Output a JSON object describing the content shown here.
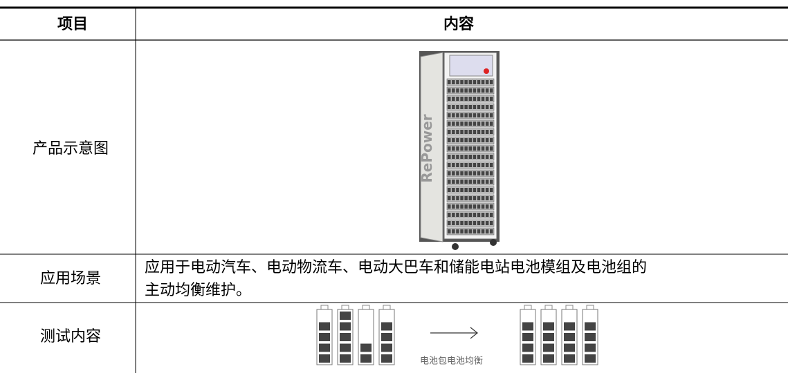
{
  "header": [
    "项目",
    "内容"
  ],
  "rows": [
    {
      "item": "产品示意图",
      "brand": "RePower"
    },
    {
      "item": "应用场景",
      "content": [
        "应用于电动汽车、电动物流车、电动大巴车和储能电站电池模组及电池组的",
        "主动均衡维护。"
      ]
    },
    {
      "item": "测试内容",
      "caption": "电池包电池均衡"
    }
  ]
}
